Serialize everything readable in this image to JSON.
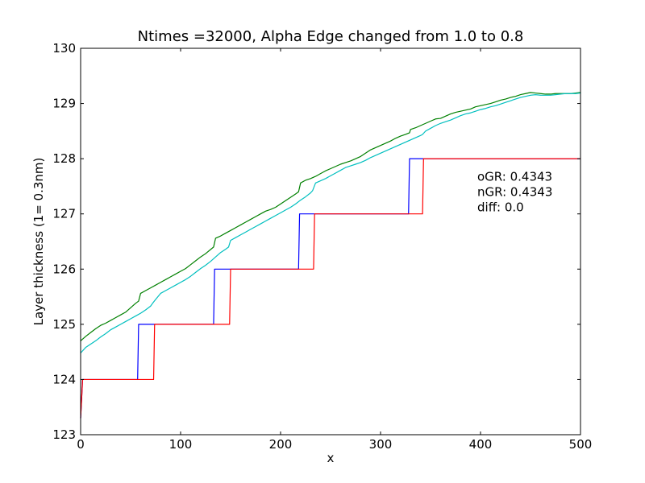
{
  "chart_data": {
    "type": "line",
    "title": "Ntimes =32000, Alpha Edge changed from 1.0 to 0.8",
    "xlabel": "x",
    "ylabel": "Layer thickness (1= 0.3nm)",
    "xlim": [
      0,
      500
    ],
    "ylim": [
      123,
      130
    ],
    "xticks": [
      0,
      100,
      200,
      300,
      400,
      500
    ],
    "yticks": [
      123,
      124,
      125,
      126,
      127,
      128,
      129,
      130
    ],
    "grid": false,
    "annotations": [
      "oGR: 0.4343",
      "nGR: 0.4343",
      "diff: 0.0"
    ],
    "annotation_anchor": [
      400,
      127.6
    ],
    "series": [
      {
        "color": "#008000",
        "style": "line",
        "x": [
          0,
          5,
          10,
          15,
          20,
          25,
          30,
          35,
          40,
          45,
          50,
          55,
          58,
          60,
          65,
          70,
          75,
          80,
          85,
          90,
          95,
          100,
          105,
          110,
          115,
          120,
          125,
          133,
          135,
          140,
          145,
          150,
          155,
          160,
          165,
          170,
          175,
          180,
          185,
          190,
          195,
          200,
          205,
          210,
          215,
          218,
          220,
          225,
          230,
          235,
          240,
          245,
          250,
          255,
          260,
          265,
          270,
          275,
          280,
          285,
          290,
          295,
          300,
          305,
          310,
          315,
          320,
          325,
          329,
          330,
          335,
          340,
          345,
          350,
          355,
          360,
          365,
          370,
          375,
          380,
          385,
          390,
          395,
          400,
          405,
          410,
          415,
          420,
          425,
          430,
          435,
          440,
          445,
          450,
          455,
          460,
          465,
          470,
          475,
          480,
          485,
          490,
          495,
          500
        ],
        "y": [
          124.7,
          124.78,
          124.85,
          124.92,
          124.98,
          125.02,
          125.07,
          125.12,
          125.17,
          125.22,
          125.3,
          125.38,
          125.42,
          125.56,
          125.61,
          125.66,
          125.71,
          125.76,
          125.81,
          125.86,
          125.91,
          125.96,
          126.01,
          126.08,
          126.15,
          126.22,
          126.28,
          126.4,
          126.56,
          126.6,
          126.65,
          126.7,
          126.75,
          126.8,
          126.85,
          126.9,
          126.95,
          127.0,
          127.05,
          127.08,
          127.12,
          127.18,
          127.24,
          127.3,
          127.36,
          127.4,
          127.56,
          127.61,
          127.64,
          127.68,
          127.73,
          127.78,
          127.82,
          127.86,
          127.9,
          127.93,
          127.96,
          128.0,
          128.04,
          128.1,
          128.16,
          128.2,
          128.24,
          128.28,
          128.32,
          128.37,
          128.41,
          128.44,
          128.47,
          128.53,
          128.56,
          128.6,
          128.64,
          128.68,
          128.72,
          128.73,
          128.77,
          128.81,
          128.84,
          128.86,
          128.88,
          128.9,
          128.94,
          128.96,
          128.98,
          129.0,
          129.03,
          129.06,
          129.08,
          129.11,
          129.13,
          129.16,
          129.18,
          129.2,
          129.19,
          129.18,
          129.17,
          129.17,
          129.18,
          129.18,
          129.18,
          129.18,
          129.19,
          129.2
        ]
      },
      {
        "color": "#00bfbf",
        "style": "line",
        "x": [
          0,
          5,
          10,
          15,
          20,
          25,
          30,
          35,
          40,
          45,
          50,
          55,
          60,
          65,
          70,
          72,
          75,
          80,
          85,
          90,
          95,
          100,
          105,
          110,
          115,
          120,
          125,
          130,
          135,
          140,
          145,
          148,
          150,
          155,
          160,
          165,
          170,
          175,
          180,
          185,
          190,
          195,
          200,
          205,
          210,
          215,
          220,
          225,
          230,
          232,
          235,
          240,
          245,
          250,
          255,
          260,
          265,
          270,
          275,
          280,
          285,
          290,
          295,
          300,
          305,
          310,
          315,
          320,
          325,
          330,
          335,
          340,
          342,
          345,
          350,
          355,
          360,
          365,
          370,
          375,
          380,
          385,
          390,
          395,
          400,
          405,
          410,
          415,
          420,
          425,
          430,
          435,
          440,
          445,
          450,
          455,
          460,
          465,
          470,
          475,
          480,
          485,
          490,
          495,
          500
        ],
        "y": [
          124.48,
          124.58,
          124.64,
          124.7,
          124.77,
          124.83,
          124.9,
          124.95,
          125.0,
          125.05,
          125.1,
          125.15,
          125.2,
          125.26,
          125.33,
          125.38,
          125.45,
          125.56,
          125.61,
          125.66,
          125.71,
          125.76,
          125.81,
          125.87,
          125.94,
          126.01,
          126.07,
          126.14,
          126.22,
          126.3,
          126.36,
          126.4,
          126.52,
          126.57,
          126.62,
          126.67,
          126.72,
          126.77,
          126.82,
          126.87,
          126.92,
          126.97,
          127.02,
          127.07,
          127.12,
          127.18,
          127.25,
          127.31,
          127.38,
          127.42,
          127.56,
          127.6,
          127.64,
          127.69,
          127.74,
          127.79,
          127.84,
          127.87,
          127.9,
          127.93,
          127.97,
          128.02,
          128.06,
          128.1,
          128.14,
          128.18,
          128.22,
          128.26,
          128.3,
          128.34,
          128.38,
          128.42,
          128.44,
          128.5,
          128.55,
          128.6,
          128.64,
          128.67,
          128.7,
          128.74,
          128.78,
          128.81,
          128.83,
          128.86,
          128.89,
          128.91,
          128.94,
          128.96,
          128.99,
          129.02,
          129.05,
          129.08,
          129.11,
          129.13,
          129.15,
          129.16,
          129.15,
          129.15,
          129.15,
          129.16,
          129.17,
          129.18,
          129.18,
          129.18,
          129.19
        ]
      },
      {
        "color": "#0000ff",
        "style": "step",
        "x": [
          0,
          2,
          57,
          58,
          133,
          134,
          218,
          219,
          328,
          329,
          500
        ],
        "y": [
          123.3,
          124,
          124,
          125,
          125,
          126,
          126,
          127,
          127,
          128,
          128
        ]
      },
      {
        "color": "#ff0000",
        "style": "step",
        "x": [
          0,
          2,
          73,
          74,
          149,
          150,
          233,
          234,
          342,
          343,
          500
        ],
        "y": [
          123.3,
          124,
          124,
          125,
          125,
          126,
          126,
          127,
          127,
          128,
          128
        ]
      }
    ]
  }
}
